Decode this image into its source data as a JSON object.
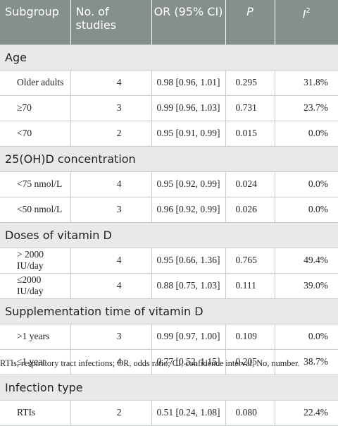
{
  "header": {
    "subgroup": "Subgroup",
    "studies": "No. of studies",
    "or": "OR (95% CI)",
    "p": "P",
    "i2_base": "I",
    "i2_sup": "2"
  },
  "groups": [
    {
      "title": "Age",
      "rows": [
        {
          "subgroup": "Older adults",
          "studies": "4",
          "or": "0.98 [0.96, 1.01]",
          "p": "0.295",
          "i2": "31.8%"
        },
        {
          "subgroup": "≥70",
          "studies": "3",
          "or": "0.99 [0.96, 1.03]",
          "p": "0.731",
          "i2": "23.7%"
        },
        {
          "subgroup": "<70",
          "studies": "2",
          "or": "0.95 [0.91, 0.99]",
          "p": "0.015",
          "i2": "0.0%"
        }
      ]
    },
    {
      "title": "25(OH)D concentration",
      "rows": [
        {
          "subgroup": "<75 nmol/L",
          "studies": "4",
          "or": "0.95 [0.92, 0.99]",
          "p": "0.024",
          "i2": "0.0%"
        },
        {
          "subgroup": "<50 nmol/L",
          "studies": "3",
          "or": "0.96 [0.92, 0.99]",
          "p": "0.026",
          "i2": "0.0%"
        }
      ]
    },
    {
      "title": "Doses of vitamin D",
      "rows": [
        {
          "subgroup": "> 2000 IU/day",
          "studies": "4",
          "or": "0.95 [0.66, 1.36]",
          "p": "0.765",
          "i2": "49.4%"
        },
        {
          "subgroup": "≤2000 IU/day",
          "studies": "4",
          "or": "0.88 [0.75, 1.03]",
          "p": "0.111",
          "i2": "39.0%"
        }
      ]
    },
    {
      "title": "Supplementation time of vitamin D",
      "rows": [
        {
          "subgroup": ">1 years",
          "studies": "3",
          "or": "0.99 [0.97, 1.00]",
          "p": "0.109",
          "i2": "0.0%"
        },
        {
          "subgroup": "≤1 year",
          "studies": "4",
          "or": "0.77 [0.52, 1.15]",
          "p": "0.205",
          "i2": "38.7%"
        }
      ]
    },
    {
      "title": "Infection type",
      "rows": [
        {
          "subgroup": "RTIs",
          "studies": "2",
          "or": "0.51 [0.24, 1.08]",
          "p": "0.080",
          "i2": "22.4%"
        }
      ]
    }
  ],
  "footnote": "RTIs, respiratory tract infections; OR, odds ratio; CI, confidence interval; No, number."
}
